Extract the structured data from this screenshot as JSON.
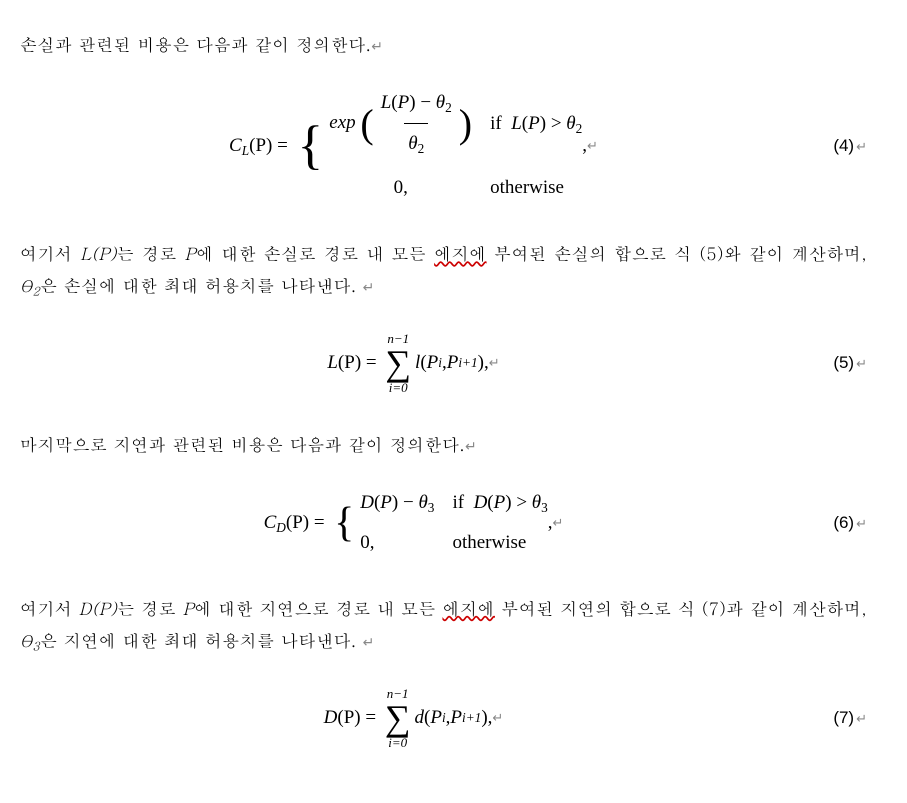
{
  "text_color": "#000000",
  "background_color": "#ffffff",
  "squiggle_color": "#cc0000",
  "return_mark": "↵",
  "para1": {
    "t1": "손실과 관련된 비용은 다음과 같이 정의한다."
  },
  "eq4": {
    "lhs_fn": "C",
    "lhs_fn_sub": "L",
    "lhs_arg": "P",
    "exp": "exp",
    "frac_num_a": "L",
    "frac_num_arg": "P",
    "frac_num_minus": "−",
    "frac_num_theta": "θ",
    "frac_num_thetasub": "2",
    "frac_den_theta": "θ",
    "frac_den_thetasub": "2",
    "cond1_if": "if ",
    "cond1_fn": "L",
    "cond1_arg": "P",
    "cond1_gt": " > ",
    "cond1_theta": "θ",
    "cond1_thetasub": "2",
    "zero": "0,",
    "otherwise": "otherwise",
    "comma": " ,",
    "num": "(4)"
  },
  "para2": {
    "t1": "여기서 ",
    "m1_fn": "L",
    "m1_arg": "P",
    "t2": "는 경로 ",
    "m2": "P",
    "t3": "에 대한 손실로 경로 내 모든 ",
    "sq1": "에지에",
    "t4": " 부여된 손실의 합으로 식 (5)와 같이 계산하며, ",
    "m3_theta": "θ",
    "m3_sub": "2",
    "t5": "은 손실에 대한 최대 허용치를 나타낸다. "
  },
  "eq5": {
    "lhs_fn": "L",
    "lhs_arg": "P",
    "sum_top_a": "n",
    "sum_top_b": "−1",
    "sum_bot": "i=0",
    "rhs_fn": "l",
    "rhs_a": "P",
    "rhs_a_sub": "i",
    "rhs_b": "P",
    "rhs_b_sub": "i+1",
    "comma": ",",
    "num": "(5)"
  },
  "para3": {
    "t1": "마지막으로 지연과 관련된 비용은 다음과 같이 정의한다."
  },
  "eq6": {
    "lhs_fn": "C",
    "lhs_fn_sub": "D",
    "lhs_arg": "P",
    "case1_fn": "D",
    "case1_arg": "P",
    "case1_minus": " − ",
    "case1_theta": "θ",
    "case1_thetasub": "3",
    "cond1_if": "if ",
    "cond1_fn": "D",
    "cond1_arg": "P",
    "cond1_gt": " > ",
    "cond1_theta": "θ",
    "cond1_thetasub": "3",
    "zero": "0,",
    "otherwise": "otherwise",
    "comma": " ,",
    "num": "(6)"
  },
  "para4": {
    "t1": "여기서 ",
    "m1_fn": "D",
    "m1_arg": "P",
    "t2": "는 경로 ",
    "m2": "P",
    "t3": "에 대한 지연으로 경로 내 모든 ",
    "sq1": "에지에",
    "t4": " 부여된 지연의 합으로 식 (7)과 같이 계산하며, ",
    "m3_theta": "θ",
    "m3_sub": "3",
    "t5": "은 지연에 대한 최대 허용치를 나타낸다. "
  },
  "eq7": {
    "lhs_fn": "D",
    "lhs_arg": "P",
    "sum_top_a": "n",
    "sum_top_b": "−1",
    "sum_bot": "i=0",
    "rhs_fn": "d",
    "rhs_a": "P",
    "rhs_a_sub": "i",
    "rhs_b": "P",
    "rhs_b_sub": "i+1",
    "comma": ",",
    "num": "(7)"
  }
}
